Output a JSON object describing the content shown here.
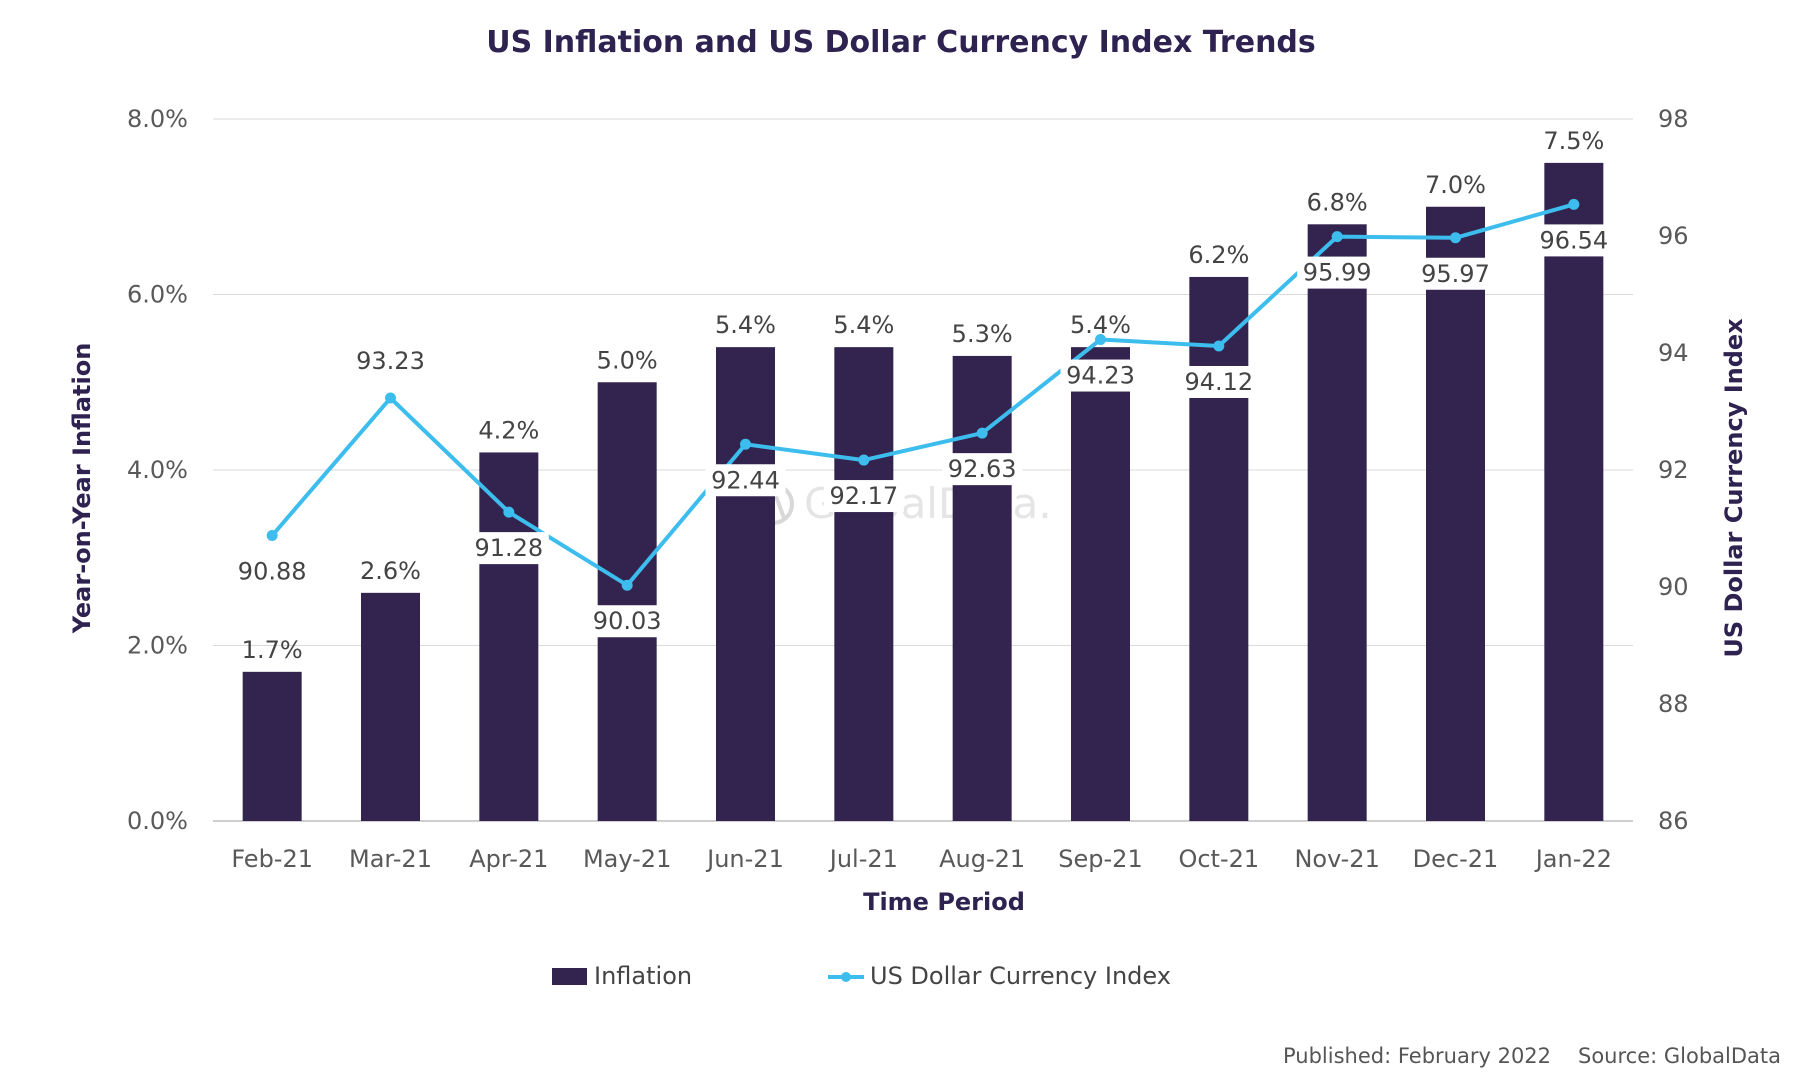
{
  "chart_data": {
    "type": "bar",
    "title": "US Inflation and US Dollar Currency Index Trends",
    "xlabel": "Time Period",
    "ylabel": "Year-on-Year Inflation",
    "y2label": "US Dollar Currency Index",
    "categories": [
      "Feb-21",
      "Mar-21",
      "Apr-21",
      "May-21",
      "Jun-21",
      "Jul-21",
      "Aug-21",
      "Sep-21",
      "Oct-21",
      "Nov-21",
      "Dec-21",
      "Jan-22"
    ],
    "series": [
      {
        "name": "Inflation",
        "type": "bar",
        "axis": "left",
        "color": "#33244f",
        "values": [
          1.7,
          2.6,
          4.2,
          5.0,
          5.4,
          5.4,
          5.3,
          5.4,
          6.2,
          6.8,
          7.0,
          7.5
        ],
        "labels": [
          "1.7%",
          "2.6%",
          "4.2%",
          "5.0%",
          "5.4%",
          "5.4%",
          "5.3%",
          "5.4%",
          "6.2%",
          "6.8%",
          "7.0%",
          "7.5%"
        ]
      },
      {
        "name": "US Dollar Currency Index",
        "type": "line",
        "axis": "right",
        "color": "#3dbdee",
        "values": [
          90.88,
          93.23,
          91.28,
          90.03,
          92.44,
          92.17,
          92.63,
          94.23,
          94.12,
          95.99,
          95.97,
          96.54
        ],
        "labels": [
          "90.88",
          "93.23",
          "91.28",
          "90.03",
          "92.44",
          "92.17",
          "92.63",
          "94.23",
          "94.12",
          "95.99",
          "95.97",
          "96.54"
        ]
      }
    ],
    "ylim": [
      0,
      8
    ],
    "y_ticks": [
      "0.0%",
      "2.0%",
      "4.0%",
      "6.0%",
      "8.0%"
    ],
    "y2lim": [
      86,
      98
    ],
    "y2_ticks": [
      "86",
      "88",
      "90",
      "92",
      "94",
      "96",
      "98"
    ],
    "grid": true,
    "legend_position": "bottom"
  },
  "watermark": "GlobalData.",
  "footer": {
    "published": "Published: February 2022",
    "source": "Source: GlobalData"
  }
}
